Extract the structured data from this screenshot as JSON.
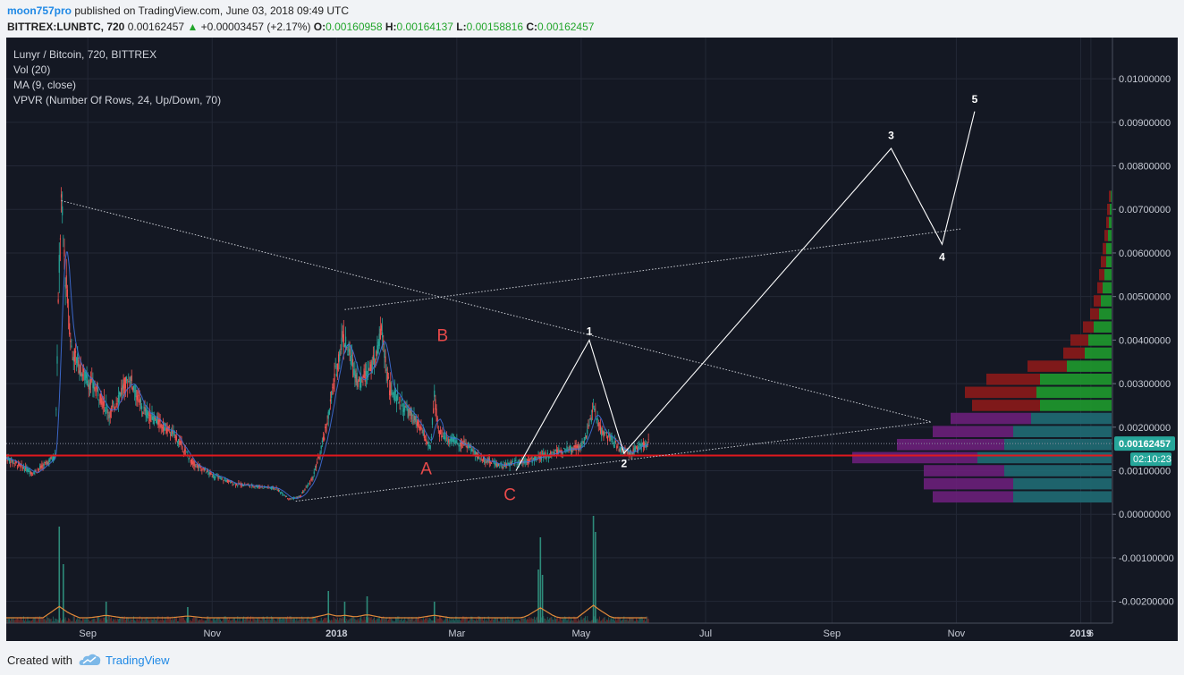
{
  "header": {
    "author": "moon757pro",
    "published_text": "published on TradingView.com, June 03, 2018 09:49 UTC",
    "symbol": "BITTREX:LUNBTC, 720",
    "last": "0.00162457",
    "change": "+0.00003457 (+2.17%)",
    "o_label": "O:",
    "o_val": "0.00160958",
    "h_label": "H:",
    "h_val": "0.00164137",
    "l_label": "L:",
    "l_val": "0.00158816",
    "c_label": "C:",
    "c_val": "0.00162457"
  },
  "legend": [
    "Lunyr / Bitcoin, 720, BITTREX",
    "Vol (20)",
    "MA (9, close)",
    "VPVR (Number Of Rows, 24, Up/Down, 70)"
  ],
  "price_tag": {
    "value": "0.00162457",
    "countdown": "02:10:23"
  },
  "footer": {
    "created": "Created with",
    "brand": "TradingView"
  },
  "colors": {
    "background": "#141823",
    "up": "#26a69a",
    "down": "#ef5350",
    "ma": "#3f6fd9",
    "support": "#e0181e",
    "wave": "#ffffff",
    "abc": "#e84a4a",
    "vp_up_low": "#1f6b74",
    "vp_down_low": "#6a1f7a",
    "vp_up_high": "#1e9a2e",
    "vp_down_high": "#8b1a1a",
    "tag": "#26a69a"
  },
  "chart_data": {
    "type": "candlestick",
    "title": "Lunyr / Bitcoin, 720, BITTREX",
    "x_ticks": [
      "Sep",
      "Nov",
      "2018",
      "Mar",
      "May",
      "Jul",
      "Sep",
      "Nov",
      "2019",
      "6"
    ],
    "y_ticks": [
      "0.01000000",
      "0.00900000",
      "0.00800000",
      "0.00700000",
      "0.00600000",
      "0.00500000",
      "0.00400000",
      "0.00300000",
      "0.00200000",
      "0.00100000",
      "0.00000000",
      "-0.00100000",
      "-0.00200000"
    ],
    "ylim": [
      -0.0025,
      0.0107
    ],
    "x_range": [
      "2017-07-23",
      "2019-01-10"
    ],
    "price_path": [
      [
        "2017-07-23",
        0.0013
      ],
      [
        "2017-08-05",
        0.00095
      ],
      [
        "2017-08-10",
        0.0011
      ],
      [
        "2017-08-16",
        0.00135
      ],
      [
        "2017-08-18",
        0.0058
      ],
      [
        "2017-08-19",
        0.0071
      ],
      [
        "2017-08-21",
        0.0055
      ],
      [
        "2017-08-24",
        0.0038
      ],
      [
        "2017-08-30",
        0.0032
      ],
      [
        "2017-09-06",
        0.0028
      ],
      [
        "2017-09-12",
        0.0023
      ],
      [
        "2017-09-18",
        0.0029
      ],
      [
        "2017-09-22",
        0.0031
      ],
      [
        "2017-09-28",
        0.0024
      ],
      [
        "2017-10-06",
        0.0021
      ],
      [
        "2017-10-14",
        0.0018
      ],
      [
        "2017-10-22",
        0.0012
      ],
      [
        "2017-11-01",
        0.0009
      ],
      [
        "2017-11-12",
        0.0007
      ],
      [
        "2017-11-22",
        0.00065
      ],
      [
        "2017-12-02",
        0.0006
      ],
      [
        "2017-12-09",
        0.00035
      ],
      [
        "2017-12-14",
        0.0004
      ],
      [
        "2017-12-20",
        0.0008
      ],
      [
        "2017-12-24",
        0.0014
      ],
      [
        "2017-12-27",
        0.002
      ],
      [
        "2017-12-31",
        0.0031
      ],
      [
        "2018-01-04",
        0.0041
      ],
      [
        "2018-01-08",
        0.0036
      ],
      [
        "2018-01-12",
        0.003
      ],
      [
        "2018-01-16",
        0.0033
      ],
      [
        "2018-01-20",
        0.0035
      ],
      [
        "2018-01-23",
        0.0042
      ],
      [
        "2018-01-27",
        0.0029
      ],
      [
        "2018-02-02",
        0.0025
      ],
      [
        "2018-02-08",
        0.0022
      ],
      [
        "2018-02-13",
        0.0018
      ],
      [
        "2018-02-16",
        0.0015
      ],
      [
        "2018-02-18",
        0.0027
      ],
      [
        "2018-02-20",
        0.0019
      ],
      [
        "2018-02-26",
        0.0017
      ],
      [
        "2018-03-06",
        0.0016
      ],
      [
        "2018-03-12",
        0.0013
      ],
      [
        "2018-03-18",
        0.0012
      ],
      [
        "2018-03-24",
        0.0011
      ],
      [
        "2018-03-30",
        0.0012
      ],
      [
        "2018-04-07",
        0.00125
      ],
      [
        "2018-04-14",
        0.00135
      ],
      [
        "2018-04-20",
        0.00145
      ],
      [
        "2018-04-26",
        0.0015
      ],
      [
        "2018-05-02",
        0.0016
      ],
      [
        "2018-05-07",
        0.0024
      ],
      [
        "2018-05-11",
        0.0019
      ],
      [
        "2018-05-16",
        0.0017
      ],
      [
        "2018-05-20",
        0.0015
      ],
      [
        "2018-05-25",
        0.0014
      ],
      [
        "2018-05-30",
        0.00155
      ],
      [
        "2018-06-03",
        0.00162457
      ]
    ],
    "volume_spikes": [
      [
        "2017-08-18",
        0.9
      ],
      [
        "2017-08-20",
        0.55
      ],
      [
        "2017-09-10",
        0.2
      ],
      [
        "2017-10-20",
        0.15
      ],
      [
        "2017-12-28",
        0.3
      ],
      [
        "2018-01-05",
        0.2
      ],
      [
        "2018-01-16",
        0.25
      ],
      [
        "2018-02-18",
        0.2
      ],
      [
        "2018-04-10",
        0.5
      ],
      [
        "2018-04-11",
        0.8
      ],
      [
        "2018-04-12",
        0.45
      ],
      [
        "2018-05-07",
        1.0
      ],
      [
        "2018-05-08",
        0.85
      ]
    ],
    "support_line": 0.00135,
    "trendlines": [
      {
        "style": "dotted",
        "from": [
          "2017-08-19",
          0.0072
        ],
        "to": [
          "2018-10-20",
          0.00212
        ]
      },
      {
        "style": "dotted",
        "from": [
          "2017-12-12",
          0.0003
        ],
        "to": [
          "2018-10-20",
          0.00212
        ]
      },
      {
        "style": "dotted",
        "from": [
          "2018-01-05",
          0.0047
        ],
        "to": [
          "2018-11-03",
          0.00655
        ]
      }
    ],
    "wave_path": [
      [
        "2018-03-30",
        0.001
      ],
      [
        "2018-05-05",
        0.004
      ],
      [
        "2018-05-22",
        0.0014
      ],
      [
        "2018-09-30",
        0.0084
      ],
      [
        "2018-10-25",
        0.0062
      ],
      [
        "2018-11-10",
        0.00925
      ]
    ],
    "wave_labels": [
      {
        "text": "1",
        "x": "2018-05-05",
        "y": 0.00412
      },
      {
        "text": "2",
        "x": "2018-05-22",
        "y": 0.00108
      },
      {
        "text": "3",
        "x": "2018-09-30",
        "y": 0.00862
      },
      {
        "text": "4",
        "x": "2018-10-25",
        "y": 0.00582
      },
      {
        "text": "5",
        "x": "2018-11-10",
        "y": 0.00945
      }
    ],
    "abc_labels": [
      {
        "text": "A",
        "x": "2018-02-14",
        "y": 0.00092
      },
      {
        "text": "B",
        "x": "2018-02-22",
        "y": 0.00398
      },
      {
        "text": "C",
        "x": "2018-03-27",
        "y": 0.00032
      }
    ],
    "vpvr": [
      {
        "price": 0.0004,
        "up": 0.55,
        "down": 0.45
      },
      {
        "price": 0.0007,
        "up": 0.55,
        "down": 0.5
      },
      {
        "price": 0.001,
        "up": 0.6,
        "down": 0.45
      },
      {
        "price": 0.0013,
        "up": 0.75,
        "down": 0.7
      },
      {
        "price": 0.0016,
        "up": 0.6,
        "down": 0.6
      },
      {
        "price": 0.0019,
        "up": 0.55,
        "down": 0.45
      },
      {
        "price": 0.0022,
        "up": 0.45,
        "down": 0.45
      },
      {
        "price": 0.0025,
        "up": 0.4,
        "down": 0.38
      },
      {
        "price": 0.0028,
        "up": 0.42,
        "down": 0.4
      },
      {
        "price": 0.0031,
        "up": 0.4,
        "down": 0.3
      },
      {
        "price": 0.0034,
        "up": 0.25,
        "down": 0.22
      },
      {
        "price": 0.0037,
        "up": 0.15,
        "down": 0.12
      },
      {
        "price": 0.004,
        "up": 0.13,
        "down": 0.1
      },
      {
        "price": 0.0043,
        "up": 0.1,
        "down": 0.06
      },
      {
        "price": 0.0046,
        "up": 0.07,
        "down": 0.05
      },
      {
        "price": 0.0049,
        "up": 0.06,
        "down": 0.04
      },
      {
        "price": 0.0052,
        "up": 0.05,
        "down": 0.03
      },
      {
        "price": 0.0055,
        "up": 0.04,
        "down": 0.03
      },
      {
        "price": 0.0058,
        "up": 0.03,
        "down": 0.03
      },
      {
        "price": 0.0061,
        "up": 0.03,
        "down": 0.02
      },
      {
        "price": 0.0064,
        "up": 0.02,
        "down": 0.02
      },
      {
        "price": 0.0067,
        "up": 0.015,
        "down": 0.015
      },
      {
        "price": 0.007,
        "up": 0.01,
        "down": 0.015
      },
      {
        "price": 0.0073,
        "up": 0.005,
        "down": 0.01
      }
    ]
  }
}
